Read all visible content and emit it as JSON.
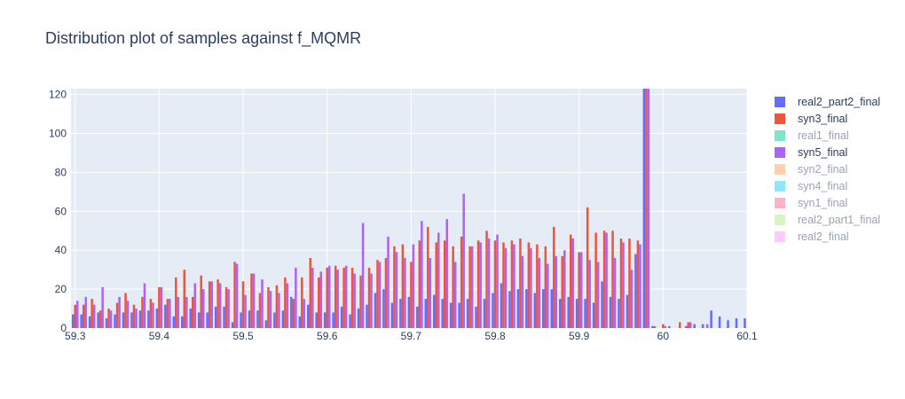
{
  "chart_data": {
    "type": "bar",
    "title": "Distribution plot of samples against f_MQMR",
    "xlim": [
      59.295,
      60.1
    ],
    "ylim": [
      0,
      123
    ],
    "x_ticks": [
      "59.3",
      "59.4",
      "59.5",
      "59.6",
      "59.7",
      "59.8",
      "59.9",
      "60",
      "60.1"
    ],
    "y_ticks": [
      "0",
      "20",
      "40",
      "60",
      "80",
      "100",
      "120"
    ],
    "grid": true,
    "legend_position": "right",
    "series": [
      {
        "name": "real2_part2_final",
        "color": "#636efa",
        "visible": true,
        "x": [
          59.3,
          59.31,
          59.32,
          59.33,
          59.34,
          59.35,
          59.36,
          59.37,
          59.38,
          59.39,
          59.4,
          59.41,
          59.42,
          59.43,
          59.44,
          59.45,
          59.46,
          59.47,
          59.48,
          59.49,
          59.5,
          59.51,
          59.52,
          59.53,
          59.54,
          59.55,
          59.56,
          59.57,
          59.58,
          59.59,
          59.6,
          59.61,
          59.62,
          59.63,
          59.64,
          59.65,
          59.66,
          59.67,
          59.68,
          59.69,
          59.7,
          59.71,
          59.72,
          59.73,
          59.74,
          59.75,
          59.76,
          59.77,
          59.78,
          59.79,
          59.8,
          59.81,
          59.82,
          59.83,
          59.84,
          59.85,
          59.86,
          59.87,
          59.88,
          59.89,
          59.9,
          59.91,
          59.92,
          59.93,
          59.94,
          59.95,
          59.96,
          59.97,
          59.98,
          59.99,
          60.0,
          60.01,
          60.02,
          60.03,
          60.04,
          60.05,
          60.06,
          60.07,
          60.08,
          60.09,
          60.1
        ],
        "values": [
          7,
          7,
          6,
          8,
          5,
          7,
          8,
          8,
          9,
          9,
          10,
          12,
          6,
          6,
          10,
          8,
          8,
          11,
          11,
          3,
          8,
          9,
          9,
          4,
          8,
          9,
          16,
          6,
          12,
          8,
          8,
          8,
          11,
          7,
          10,
          12,
          18,
          20,
          13,
          15,
          16,
          11,
          15,
          17,
          15,
          13,
          13,
          15,
          11,
          15,
          18,
          23,
          19,
          20,
          20,
          18,
          20,
          20,
          15,
          16,
          15,
          15,
          13,
          24,
          16,
          15,
          17,
          38,
          123,
          1,
          0,
          1,
          0,
          1,
          2,
          2,
          9,
          6,
          4,
          5,
          5
        ]
      },
      {
        "name": "syn3_final",
        "color": "#ef553b",
        "visible": true,
        "x": [
          59.3,
          59.31,
          59.32,
          59.33,
          59.34,
          59.35,
          59.36,
          59.37,
          59.38,
          59.39,
          59.4,
          59.41,
          59.42,
          59.43,
          59.44,
          59.45,
          59.46,
          59.47,
          59.48,
          59.49,
          59.5,
          59.51,
          59.52,
          59.53,
          59.54,
          59.55,
          59.56,
          59.57,
          59.58,
          59.59,
          59.6,
          59.61,
          59.62,
          59.63,
          59.64,
          59.65,
          59.66,
          59.67,
          59.68,
          59.69,
          59.7,
          59.71,
          59.72,
          59.73,
          59.74,
          59.75,
          59.76,
          59.77,
          59.78,
          59.79,
          59.8,
          59.81,
          59.82,
          59.83,
          59.84,
          59.85,
          59.86,
          59.87,
          59.88,
          59.89,
          59.9,
          59.91,
          59.92,
          59.93,
          59.94,
          59.95,
          59.96,
          59.97,
          59.98,
          59.99,
          60.0,
          60.01,
          60.02,
          60.03,
          60.04,
          60.05,
          60.06,
          60.07,
          60.08,
          60.09,
          60.1
        ],
        "values": [
          12,
          12,
          15,
          9,
          10,
          13,
          18,
          12,
          16,
          15,
          21,
          15,
          26,
          30,
          16,
          27,
          24,
          25,
          21,
          34,
          24,
          28,
          18,
          21,
          22,
          26,
          15,
          26,
          36,
          26,
          31,
          32,
          31,
          31,
          27,
          31,
          35,
          36,
          42,
          43,
          34,
          45,
          52,
          44,
          45,
          42,
          47,
          42,
          45,
          50,
          45,
          44,
          45,
          46,
          44,
          43,
          42,
          52,
          37,
          48,
          39,
          62,
          49,
          50,
          50,
          46,
          46,
          45,
          123,
          1,
          2,
          0,
          3,
          3,
          0,
          0,
          0,
          0,
          0,
          0,
          0
        ]
      },
      {
        "name": "real1_final",
        "color": "#00cc96",
        "visible": false
      },
      {
        "name": "syn5_final",
        "color": "#ab63fa",
        "visible": true,
        "x": [
          59.3,
          59.31,
          59.32,
          59.33,
          59.34,
          59.35,
          59.36,
          59.37,
          59.38,
          59.39,
          59.4,
          59.41,
          59.42,
          59.43,
          59.44,
          59.45,
          59.46,
          59.47,
          59.48,
          59.49,
          59.5,
          59.51,
          59.52,
          59.53,
          59.54,
          59.55,
          59.56,
          59.57,
          59.58,
          59.59,
          59.6,
          59.61,
          59.62,
          59.63,
          59.64,
          59.65,
          59.66,
          59.67,
          59.68,
          59.69,
          59.7,
          59.71,
          59.72,
          59.73,
          59.74,
          59.75,
          59.76,
          59.77,
          59.78,
          59.79,
          59.8,
          59.81,
          59.82,
          59.83,
          59.84,
          59.85,
          59.86,
          59.87,
          59.88,
          59.89,
          59.9,
          59.91,
          59.92,
          59.93,
          59.94,
          59.95,
          59.96,
          59.97,
          59.98,
          59.99,
          60.0,
          60.01,
          60.02,
          60.03,
          60.04,
          60.05,
          60.06,
          60.07,
          60.08,
          60.09,
          60.1
        ],
        "values": [
          14,
          16,
          12,
          21,
          9,
          16,
          14,
          10,
          23,
          13,
          21,
          15,
          16,
          16,
          23,
          20,
          24,
          23,
          20,
          33,
          17,
          28,
          25,
          19,
          18,
          23,
          31,
          15,
          31,
          29,
          32,
          30,
          32,
          28,
          54,
          28,
          34,
          47,
          39,
          36,
          43,
          55,
          36,
          49,
          56,
          34,
          69,
          42,
          44,
          46,
          48,
          41,
          43,
          37,
          41,
          36,
          33,
          37,
          40,
          46,
          39,
          35,
          34,
          49,
          36,
          44,
          30,
          43,
          123,
          0,
          1,
          0,
          0,
          3,
          0,
          2,
          0,
          0,
          0,
          0,
          0
        ]
      },
      {
        "name": "syn2_final",
        "color": "#ffa15a",
        "visible": false
      },
      {
        "name": "syn4_final",
        "color": "#19d3f3",
        "visible": false
      },
      {
        "name": "syn1_final",
        "color": "#ff6692",
        "visible": false
      },
      {
        "name": "real2_part1_final",
        "color": "#b6e880",
        "visible": false
      },
      {
        "name": "real2_final",
        "color": "#ff97ff",
        "visible": false
      }
    ]
  }
}
